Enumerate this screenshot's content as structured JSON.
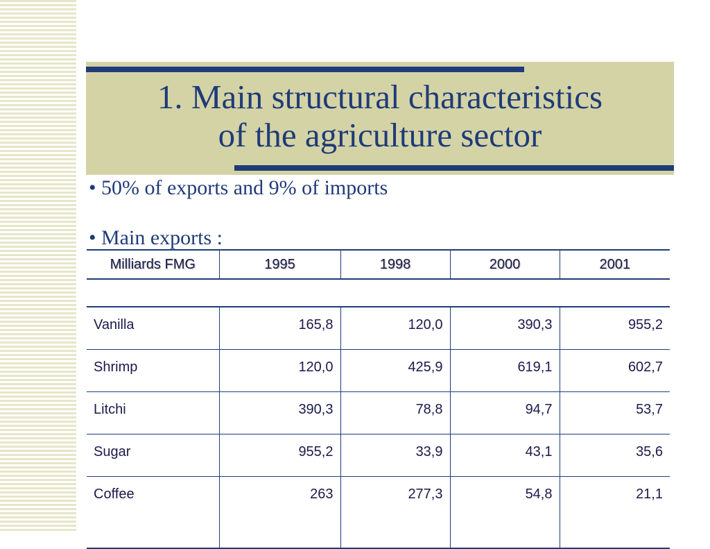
{
  "slide": {
    "title_line1": "1. Main structural characteristics",
    "title_line2": "of the agriculture sector",
    "bullets": [
      "• 50% of exports and 9% of imports",
      "• Main exports :"
    ]
  },
  "table": {
    "headers": [
      "Milliards FMG",
      "1995",
      "1998",
      "2000",
      "2001"
    ],
    "rows": [
      [
        "Vanilla",
        "165,8",
        "120,0",
        "390,3",
        "955,2"
      ],
      [
        "Shrimp",
        "120,0",
        "425,9",
        "619,1",
        "602,7"
      ],
      [
        "Litchi",
        "390,3",
        "78,8",
        "94,7",
        "53,7"
      ],
      [
        "Sugar",
        "955,2",
        "33,9",
        "43,1",
        "35,6"
      ],
      [
        "Coffee",
        "263",
        "277,3",
        "54,8",
        "21,1"
      ]
    ]
  },
  "colors": {
    "accent": "#1f3b78",
    "title_bg": "#d4d3a6",
    "stripe": "#e6e6c8"
  }
}
